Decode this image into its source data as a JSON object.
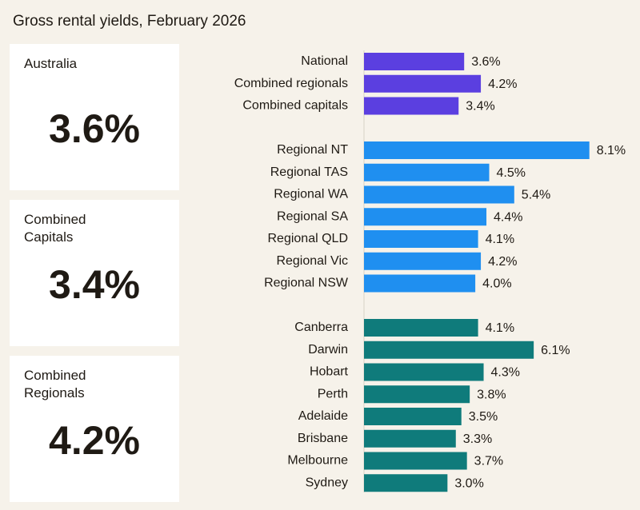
{
  "header": {
    "title": "Gross rental yields, February 2026"
  },
  "cards": [
    {
      "label": "Australia",
      "value": "3.6%"
    },
    {
      "label": "Combined Capitals",
      "value": "3.4%"
    },
    {
      "label": "Combined Regionals",
      "value": "4.2%"
    }
  ],
  "chart_data": {
    "type": "bar",
    "orientation": "horizontal",
    "xlim": [
      0,
      9
    ],
    "groups": [
      {
        "color": "#5b3fe0",
        "categories": [
          "National",
          "Combined regionals",
          "Combined capitals"
        ],
        "values": [
          3.6,
          4.2,
          3.4
        ],
        "value_labels": [
          "3.6%",
          "4.2%",
          "3.4%"
        ]
      },
      {
        "color": "#1f8ff0",
        "categories": [
          "Regional NT",
          "Regional TAS",
          "Regional WA",
          "Regional SA",
          "Regional QLD",
          "Regional Vic",
          "Regional NSW"
        ],
        "values": [
          8.1,
          4.5,
          5.4,
          4.4,
          4.1,
          4.2,
          4.0
        ],
        "value_labels": [
          "8.1%",
          "4.5%",
          "5.4%",
          "4.4%",
          "4.1%",
          "4.2%",
          "4.0%"
        ]
      },
      {
        "color": "#0f7b7b",
        "categories": [
          "Canberra",
          "Darwin",
          "Hobart",
          "Perth",
          "Adelaide",
          "Brisbane",
          "Melbourne",
          "Sydney"
        ],
        "values": [
          4.1,
          6.1,
          4.3,
          3.8,
          3.5,
          3.3,
          3.7,
          3.0
        ],
        "value_labels": [
          "4.1%",
          "6.1%",
          "4.3%",
          "3.8%",
          "3.5%",
          "3.3%",
          "3.7%",
          "3.0%"
        ]
      }
    ]
  }
}
